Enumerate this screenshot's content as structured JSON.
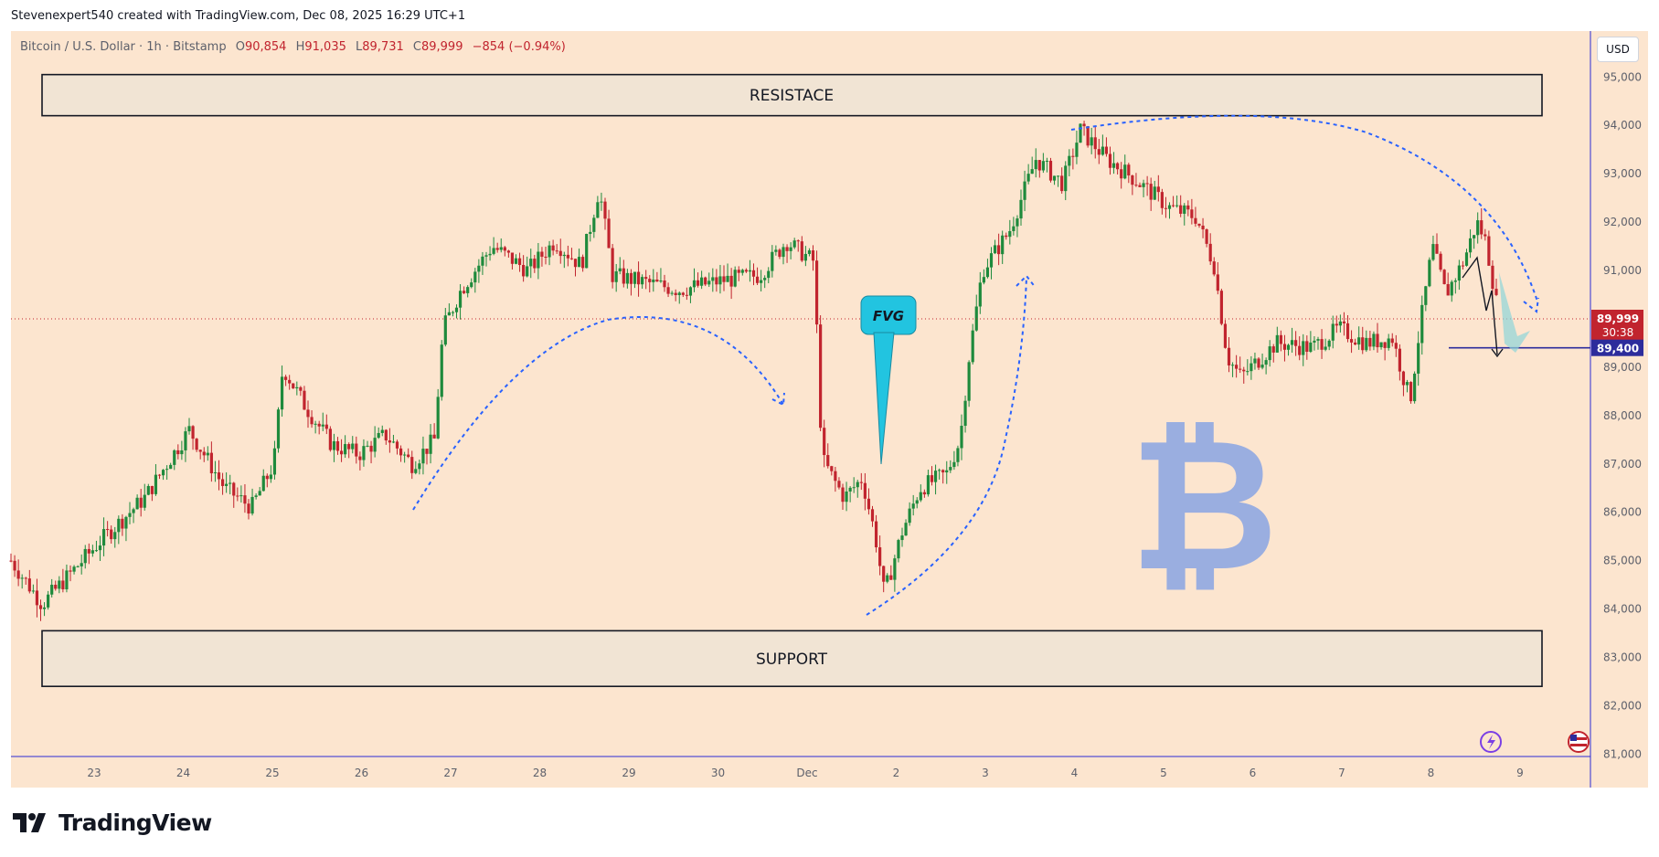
{
  "header": {
    "attribution": "Stevenexpert540 created with TradingView.com, Dec 08, 2025 16:29 UTC+1"
  },
  "symbol": {
    "description": "Bitcoin / U.S. Dollar · 1h · Bitstamp",
    "open_label": "O",
    "open": "90,854",
    "high_label": "H",
    "high": "91,035",
    "low_label": "L",
    "low": "89,731",
    "close_label": "C",
    "close": "89,999",
    "change": "−854 (−0.94%)"
  },
  "currency_button": "USD",
  "annotations": {
    "resistance_label": "RESISTACE",
    "support_label": "SUPPORT",
    "fvg_label": "FVG",
    "bitcoin_symbol": "₿"
  },
  "price_badges": {
    "last_price": "89,999",
    "countdown": "30:38",
    "target": "89,400"
  },
  "brand": {
    "name": "TradingView"
  },
  "colors": {
    "background": "#fce5cf",
    "up": "#1e8a3c",
    "down": "#c1242e",
    "arrow": "#2962ff",
    "fvg": "#22c4e0",
    "bitcoin_logo": "#9aaee0",
    "price_badge": "#c1242e",
    "target_badge": "#2c2c9c"
  },
  "chart_data": {
    "type": "candlestick",
    "interval": "1h",
    "price_axis": {
      "ticks": [
        "95,000",
        "94,000",
        "93,000",
        "92,000",
        "91,000",
        "90,000",
        "89,000",
        "88,000",
        "87,000",
        "86,000",
        "85,000",
        "84,000",
        "83,000",
        "82,000",
        "81,000"
      ],
      "range": [
        80950,
        95950
      ]
    },
    "time_axis": {
      "labels": [
        "23",
        "24",
        "25",
        "26",
        "27",
        "28",
        "29",
        "30",
        "Dec",
        "2",
        "3",
        "4",
        "5",
        "6",
        "7",
        "8",
        "9"
      ]
    },
    "zones": [
      {
        "name": "RESISTACE",
        "low": 94200,
        "high": 95050
      },
      {
        "name": "SUPPORT",
        "low": 82400,
        "high": 83550
      }
    ],
    "horizontal_lines": [
      {
        "price": 89999,
        "style": "dotted"
      },
      {
        "price": 89400,
        "style": "solid"
      }
    ],
    "anchors": [
      {
        "day": 22.0,
        "price": 85000
      },
      {
        "day": 22.35,
        "price": 84100
      },
      {
        "day": 22.6,
        "price": 84600
      },
      {
        "day": 23.0,
        "price": 85400
      },
      {
        "day": 23.5,
        "price": 86300
      },
      {
        "day": 24.0,
        "price": 87700
      },
      {
        "day": 24.4,
        "price": 86500
      },
      {
        "day": 24.7,
        "price": 86100
      },
      {
        "day": 24.95,
        "price": 87000
      },
      {
        "day": 25.05,
        "price": 89000
      },
      {
        "day": 25.3,
        "price": 88200
      },
      {
        "day": 25.6,
        "price": 87400
      },
      {
        "day": 25.9,
        "price": 87200
      },
      {
        "day": 26.2,
        "price": 87600
      },
      {
        "day": 26.5,
        "price": 87000
      },
      {
        "day": 26.75,
        "price": 87500
      },
      {
        "day": 26.85,
        "price": 89800
      },
      {
        "day": 27.05,
        "price": 90600
      },
      {
        "day": 27.4,
        "price": 91500
      },
      {
        "day": 27.8,
        "price": 91000
      },
      {
        "day": 28.1,
        "price": 91600
      },
      {
        "day": 28.4,
        "price": 91100
      },
      {
        "day": 28.6,
        "price": 92700
      },
      {
        "day": 28.75,
        "price": 90900
      },
      {
        "day": 29.0,
        "price": 90800
      },
      {
        "day": 29.5,
        "price": 90600
      },
      {
        "day": 30.0,
        "price": 90800
      },
      {
        "day": 30.4,
        "price": 90900
      },
      {
        "day": 30.7,
        "price": 91600
      },
      {
        "day": 31.0,
        "price": 91200
      },
      {
        "day": 31.05,
        "price": 89500
      },
      {
        "day": 31.1,
        "price": 87100
      },
      {
        "day": 31.35,
        "price": 86300
      },
      {
        "day": 31.55,
        "price": 86700
      },
      {
        "day": 31.7,
        "price": 85500
      },
      {
        "day": 31.8,
        "price": 84300
      },
      {
        "day": 32.0,
        "price": 85600
      },
      {
        "day": 32.2,
        "price": 86500
      },
      {
        "day": 32.5,
        "price": 86800
      },
      {
        "day": 32.65,
        "price": 87500
      },
      {
        "day": 32.75,
        "price": 89200
      },
      {
        "day": 32.9,
        "price": 91000
      },
      {
        "day": 33.2,
        "price": 91800
      },
      {
        "day": 33.5,
        "price": 93300
      },
      {
        "day": 33.8,
        "price": 92800
      },
      {
        "day": 34.0,
        "price": 93900
      },
      {
        "day": 34.3,
        "price": 93300
      },
      {
        "day": 34.6,
        "price": 92900
      },
      {
        "day": 35.0,
        "price": 92300
      },
      {
        "day": 35.3,
        "price": 92100
      },
      {
        "day": 35.5,
        "price": 91100
      },
      {
        "day": 35.65,
        "price": 89200
      },
      {
        "day": 35.8,
        "price": 88800
      },
      {
        "day": 36.2,
        "price": 89500
      },
      {
        "day": 36.6,
        "price": 89400
      },
      {
        "day": 36.9,
        "price": 89800
      },
      {
        "day": 37.2,
        "price": 89500
      },
      {
        "day": 37.5,
        "price": 89600
      },
      {
        "day": 37.7,
        "price": 88300
      },
      {
        "day": 37.8,
        "price": 89700
      },
      {
        "day": 37.95,
        "price": 91500
      },
      {
        "day": 38.1,
        "price": 90500
      },
      {
        "day": 38.3,
        "price": 91200
      },
      {
        "day": 38.45,
        "price": 92000
      },
      {
        "day": 38.55,
        "price": 91600
      },
      {
        "day": 38.7,
        "price": 89999
      }
    ]
  }
}
